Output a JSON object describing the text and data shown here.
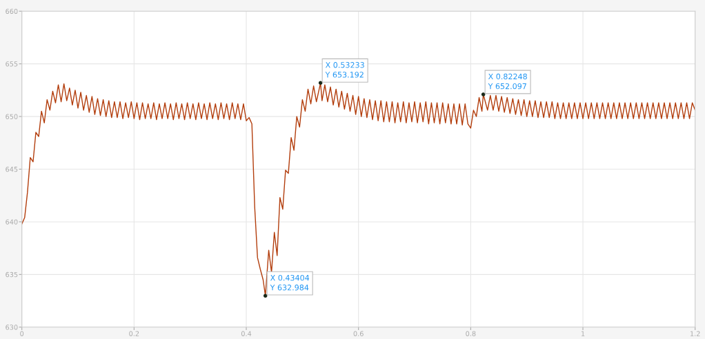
{
  "chart_data": {
    "type": "line",
    "xlim": [
      0,
      1.2
    ],
    "xticks": [
      0,
      0.2,
      0.4,
      0.6,
      0.8,
      1,
      1.2
    ],
    "ylim": [
      630,
      660
    ],
    "yticks": [
      630,
      635,
      640,
      645,
      650,
      655,
      660
    ],
    "grid": true,
    "series": [
      {
        "color": "#b23c0b",
        "x": [
          0,
          0.005,
          0.01,
          0.015,
          0.02,
          0.025,
          0.03,
          0.035,
          0.04,
          0.045,
          0.05,
          0.055,
          0.06,
          0.065,
          0.07,
          0.075,
          0.08,
          0.085,
          0.09,
          0.095,
          0.1,
          0.105,
          0.11,
          0.115,
          0.12,
          0.125,
          0.13,
          0.135,
          0.14,
          0.145,
          0.15,
          0.155,
          0.16,
          0.165,
          0.17,
          0.175,
          0.18,
          0.185,
          0.19,
          0.195,
          0.2,
          0.205,
          0.21,
          0.215,
          0.22,
          0.225,
          0.23,
          0.235,
          0.24,
          0.245,
          0.25,
          0.255,
          0.26,
          0.265,
          0.27,
          0.275,
          0.28,
          0.285,
          0.29,
          0.295,
          0.3,
          0.305,
          0.31,
          0.315,
          0.32,
          0.325,
          0.33,
          0.335,
          0.34,
          0.345,
          0.35,
          0.355,
          0.36,
          0.365,
          0.37,
          0.375,
          0.38,
          0.385,
          0.39,
          0.395,
          0.4,
          0.405,
          0.41,
          0.415,
          0.42,
          0.425,
          0.43,
          0.43404,
          0.44,
          0.445,
          0.45,
          0.455,
          0.46,
          0.465,
          0.47,
          0.475,
          0.48,
          0.485,
          0.49,
          0.495,
          0.5,
          0.505,
          0.51,
          0.515,
          0.52,
          0.525,
          0.53233,
          0.535,
          0.54,
          0.545,
          0.55,
          0.555,
          0.56,
          0.565,
          0.57,
          0.575,
          0.58,
          0.585,
          0.59,
          0.595,
          0.6,
          0.605,
          0.61,
          0.615,
          0.62,
          0.625,
          0.63,
          0.635,
          0.64,
          0.645,
          0.65,
          0.655,
          0.66,
          0.665,
          0.67,
          0.675,
          0.68,
          0.685,
          0.69,
          0.695,
          0.7,
          0.705,
          0.71,
          0.715,
          0.72,
          0.725,
          0.73,
          0.735,
          0.74,
          0.745,
          0.75,
          0.755,
          0.76,
          0.765,
          0.77,
          0.775,
          0.78,
          0.785,
          0.79,
          0.795,
          0.8,
          0.805,
          0.81,
          0.815,
          0.82,
          0.82248,
          0.83,
          0.835,
          0.84,
          0.845,
          0.85,
          0.855,
          0.86,
          0.865,
          0.87,
          0.875,
          0.88,
          0.885,
          0.89,
          0.895,
          0.9,
          0.905,
          0.91,
          0.915,
          0.92,
          0.925,
          0.93,
          0.935,
          0.94,
          0.945,
          0.95,
          0.955,
          0.96,
          0.965,
          0.97,
          0.975,
          0.98,
          0.985,
          0.99,
          0.995,
          1,
          1.005,
          1.01,
          1.015,
          1.02,
          1.025,
          1.03,
          1.035,
          1.04,
          1.045,
          1.05,
          1.055,
          1.06,
          1.065,
          1.07,
          1.075,
          1.08,
          1.085,
          1.09,
          1.095,
          1.1,
          1.105,
          1.11,
          1.115,
          1.12,
          1.125,
          1.13,
          1.135,
          1.14,
          1.145,
          1.15,
          1.155,
          1.16,
          1.165,
          1.17,
          1.175,
          1.18,
          1.185,
          1.19,
          1.195,
          1.2
        ],
        "values": [
          639.8,
          640.4,
          642.8,
          646.1,
          645.7,
          648.5,
          648.1,
          650.5,
          649.4,
          651.6,
          650.6,
          652.4,
          651.3,
          653.0,
          651.4,
          653.1,
          651.5,
          652.7,
          651.1,
          652.5,
          650.8,
          652.3,
          650.6,
          652.0,
          650.4,
          651.9,
          650.2,
          651.7,
          650.1,
          651.6,
          650.0,
          651.5,
          649.9,
          651.4,
          649.9,
          651.4,
          649.8,
          651.3,
          649.9,
          651.4,
          649.8,
          651.3,
          649.7,
          651.3,
          649.8,
          651.2,
          649.8,
          651.3,
          649.7,
          651.2,
          649.8,
          651.3,
          649.8,
          651.2,
          649.7,
          651.3,
          649.8,
          651.2,
          649.7,
          651.3,
          649.8,
          651.2,
          649.7,
          651.3,
          649.8,
          651.2,
          649.7,
          651.3,
          649.8,
          651.2,
          649.7,
          651.3,
          649.8,
          651.2,
          649.7,
          651.3,
          649.8,
          651.2,
          649.7,
          651.2,
          649.6,
          649.9,
          649.3,
          641.4,
          636.6,
          635.5,
          634.5,
          632.984,
          637.3,
          635.2,
          639.0,
          636.8,
          642.3,
          641.2,
          644.9,
          644.6,
          648.0,
          646.8,
          650.0,
          649.0,
          651.6,
          650.5,
          652.6,
          651.2,
          652.9,
          651.4,
          653.192,
          651.5,
          653.0,
          651.4,
          652.8,
          651.1,
          652.6,
          650.9,
          652.4,
          650.7,
          652.2,
          650.5,
          652.0,
          650.2,
          651.9,
          650.0,
          651.7,
          649.9,
          651.6,
          649.7,
          651.5,
          649.6,
          651.5,
          649.5,
          651.4,
          649.5,
          651.4,
          649.4,
          651.3,
          649.5,
          651.4,
          649.4,
          651.3,
          649.5,
          651.4,
          649.4,
          651.3,
          649.5,
          651.4,
          649.3,
          651.3,
          649.4,
          651.3,
          649.3,
          651.3,
          649.4,
          651.2,
          649.3,
          651.2,
          649.3,
          651.2,
          649.2,
          651.2,
          649.3,
          648.9,
          650.6,
          650.0,
          651.8,
          650.5,
          652.097,
          650.6,
          652.0,
          650.6,
          652.0,
          650.5,
          651.9,
          650.4,
          651.8,
          650.3,
          651.7,
          650.2,
          651.6,
          650.1,
          651.6,
          650.0,
          651.5,
          650.0,
          651.5,
          649.9,
          651.4,
          649.9,
          651.4,
          649.9,
          651.4,
          649.8,
          651.3,
          649.8,
          651.3,
          649.8,
          651.3,
          649.8,
          651.3,
          649.8,
          651.3,
          649.8,
          651.3,
          649.8,
          651.3,
          649.8,
          651.3,
          649.8,
          651.3,
          649.8,
          651.3,
          649.8,
          651.3,
          649.8,
          651.3,
          649.8,
          651.3,
          649.8,
          651.3,
          649.8,
          651.3,
          649.8,
          651.3,
          649.8,
          651.3,
          649.8,
          651.3,
          649.8,
          651.3,
          649.8,
          651.3,
          649.8,
          651.3,
          649.8,
          651.3,
          649.8,
          651.3,
          649.8,
          651.3,
          649.8,
          651.3,
          650.6
        ]
      }
    ],
    "annotations": [
      {
        "text": "X 0.43404\nY 632.984",
        "x": 0.43404,
        "y": 632.984
      },
      {
        "text": "X 0.53233\nY 653.192",
        "x": 0.53233,
        "y": 653.192
      },
      {
        "text": "X 0.82248\nY 652.097",
        "x": 0.82248,
        "y": 652.097
      }
    ]
  }
}
